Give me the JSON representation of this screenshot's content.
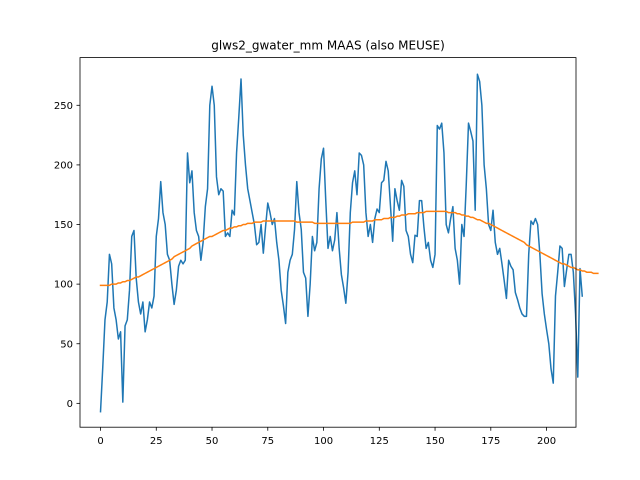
{
  "chart_data": {
    "type": "line",
    "title": "glws2_gwater_mm MAAS (also MEUSE)",
    "xlabel": "",
    "ylabel": "",
    "xlim": [
      -9.2,
      213.2
    ],
    "ylim": [
      -20,
      290
    ],
    "x_ticks": [
      0,
      25,
      50,
      75,
      100,
      125,
      150,
      175,
      200
    ],
    "y_ticks": [
      0,
      50,
      100,
      150,
      200,
      250
    ],
    "grid": false,
    "legend": "none",
    "colors": {
      "raw": "#1f77b4",
      "smooth": "#ff7f0e"
    },
    "series": [
      {
        "values": [
          -7,
          30,
          70,
          85,
          125,
          117,
          80,
          70,
          54,
          60,
          1,
          65,
          70,
          95,
          140,
          145,
          105,
          85,
          75,
          85,
          60,
          70,
          85,
          80,
          90,
          140,
          155,
          186,
          160,
          150,
          125,
          120,
          100,
          83,
          95,
          115,
          120,
          117,
          120,
          210,
          185,
          195,
          160,
          145,
          140,
          120,
          135,
          165,
          180,
          250,
          266,
          250,
          190,
          175,
          180,
          178,
          140,
          143,
          140,
          162,
          158,
          210,
          240,
          272,
          225,
          200,
          180,
          170,
          160,
          150,
          133,
          135,
          150,
          126,
          148,
          168,
          160,
          150,
          155,
          135,
          120,
          95,
          82,
          67,
          110,
          120,
          125,
          146,
          186,
          160,
          146,
          110,
          105,
          73,
          100,
          140,
          128,
          135,
          180,
          205,
          214,
          170,
          130,
          140,
          128,
          137,
          160,
          130,
          108,
          97,
          84,
          110,
          160,
          185,
          195,
          175,
          210,
          208,
          200,
          160,
          140,
          150,
          135,
          155,
          163,
          160,
          185,
          187,
          203,
          195,
          166,
          136,
          180,
          170,
          162,
          187,
          182,
          145,
          140,
          125,
          118,
          141,
          140,
          170,
          170,
          148,
          130,
          135,
          120,
          114,
          125,
          233,
          230,
          235,
          210,
          150,
          143,
          155,
          165,
          130,
          120,
          100,
          150,
          140,
          184,
          235,
          228,
          220,
          162,
          276,
          270,
          250,
          200,
          180,
          150,
          145,
          162,
          135,
          125,
          130,
          117,
          103,
          88,
          120,
          115,
          112,
          93,
          87,
          80,
          75,
          73,
          73,
          125,
          153,
          150,
          155,
          150,
          125,
          92,
          75,
          62,
          50,
          29,
          17,
          90,
          110,
          132,
          130,
          98,
          112,
          125,
          125,
          110,
          75,
          22,
          113,
          90
        ]
      },
      {
        "values": [
          99,
          99,
          99,
          99,
          99,
          100,
          100,
          100,
          101,
          101,
          102,
          102,
          103,
          103,
          104,
          105,
          106,
          106,
          107,
          108,
          109,
          110,
          111,
          112,
          113,
          114,
          115,
          116,
          117,
          118,
          119,
          120,
          121,
          123,
          124,
          125,
          126,
          127,
          128,
          129,
          130,
          132,
          133,
          134,
          135,
          136,
          137,
          138,
          139,
          140,
          140,
          141,
          142,
          143,
          144,
          145,
          145,
          146,
          147,
          147,
          148,
          148,
          149,
          149,
          150,
          150,
          151,
          151,
          151,
          152,
          152,
          152,
          152,
          153,
          153,
          153,
          153,
          153,
          153,
          153,
          153,
          153,
          153,
          153,
          153,
          153,
          153,
          153,
          152,
          152,
          152,
          152,
          152,
          152,
          152,
          152,
          151,
          151,
          151,
          151,
          151,
          151,
          151,
          151,
          151,
          151,
          151,
          151,
          151,
          151,
          151,
          151,
          151,
          152,
          152,
          152,
          152,
          152,
          152,
          153,
          153,
          153,
          153,
          154,
          154,
          154,
          154,
          155,
          155,
          155,
          156,
          156,
          156,
          157,
          157,
          158,
          158,
          158,
          159,
          159,
          159,
          159,
          160,
          160,
          160,
          160,
          161,
          161,
          161,
          161,
          161,
          161,
          161,
          161,
          161,
          161,
          160,
          160,
          160,
          160,
          159,
          159,
          158,
          158,
          157,
          157,
          156,
          156,
          155,
          154,
          154,
          153,
          152,
          151,
          151,
          150,
          149,
          148,
          147,
          146,
          145,
          144,
          143,
          142,
          141,
          140,
          139,
          138,
          137,
          136,
          135,
          133,
          132,
          131,
          130,
          129,
          128,
          127,
          126,
          125,
          124,
          123,
          122,
          121,
          120,
          119,
          118,
          117,
          117,
          116,
          115,
          114,
          114,
          113,
          112,
          112,
          111,
          111,
          110,
          110,
          110,
          109,
          109,
          109
        ]
      }
    ]
  }
}
